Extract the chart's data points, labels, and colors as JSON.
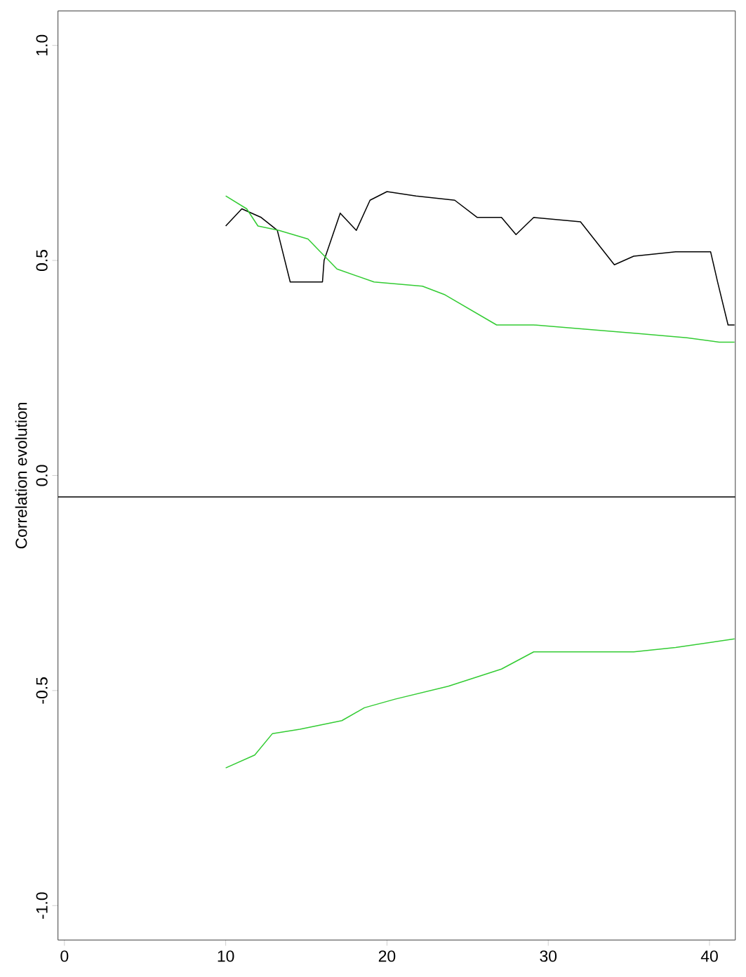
{
  "chart_data": {
    "type": "line",
    "ylabel": "Correlation evolution",
    "xlim": [
      -0.4,
      41.6
    ],
    "ylim": [
      -1.08,
      1.08
    ],
    "xticks": [
      0,
      10,
      20,
      30,
      40
    ],
    "yticks": [
      {
        "value": -1.0,
        "label": "-1.0"
      },
      {
        "value": -0.5,
        "label": "-0.5"
      },
      {
        "value": 0.0,
        "label": "0.0"
      },
      {
        "value": 0.5,
        "label": "0.5"
      },
      {
        "value": 1.0,
        "label": "1.0"
      }
    ],
    "ref_lines": [
      {
        "axis": "y",
        "value": -0.05,
        "color": "#000000"
      }
    ],
    "grid": false,
    "marker": "none",
    "line_style": "solid",
    "series": [
      {
        "color": "#000000",
        "x": [
          10,
          11,
          12.2,
          13.2,
          14,
          16,
          16.1,
          17.1,
          18.1,
          18.95,
          20,
          21.8,
          24.2,
          25.6,
          27.1,
          28,
          29.1,
          32,
          34.1,
          35.3,
          37.9,
          40.07,
          40.5,
          41.15,
          41.55
        ],
        "values": [
          0.58,
          0.62,
          0.6,
          0.57,
          0.45,
          0.45,
          0.5,
          0.61,
          0.57,
          0.64,
          0.66,
          0.65,
          0.64,
          0.6,
          0.6,
          0.56,
          0.6,
          0.59,
          0.49,
          0.51,
          0.52,
          0.52,
          0.45,
          0.35,
          0.35
        ]
      },
      {
        "color": "#33cc33",
        "x": [
          10,
          11.3,
          12,
          13.3,
          15.1,
          16.9,
          19.2,
          22.2,
          23.6,
          26.8,
          29.1,
          32.3,
          35.6,
          38.6,
          40.6,
          41.55
        ],
        "values": [
          0.65,
          0.62,
          0.58,
          0.57,
          0.55,
          0.48,
          0.45,
          0.44,
          0.42,
          0.35,
          0.35,
          0.34,
          0.33,
          0.32,
          0.31,
          0.31
        ]
      },
      {
        "color": "#33cc33",
        "x": [
          10,
          11.8,
          12.9,
          14.6,
          17.2,
          18.6,
          20.5,
          23.8,
          27.1,
          29.1,
          32.3,
          35.3,
          37.9,
          41.55
        ],
        "values": [
          -0.68,
          -0.65,
          -0.6,
          -0.59,
          -0.57,
          -0.54,
          -0.52,
          -0.49,
          -0.45,
          -0.41,
          -0.41,
          -0.41,
          -0.4,
          -0.38
        ]
      }
    ]
  }
}
